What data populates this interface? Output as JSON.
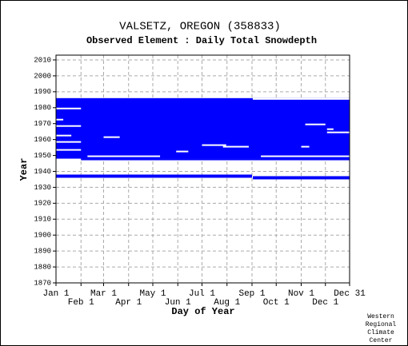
{
  "chart_data": {
    "type": "availability",
    "title": "VALSETZ, OREGON   (358833)",
    "subtitle": "Observed Element : Daily Total Snowdepth",
    "xlabel": "Day of Year",
    "ylabel": "Year",
    "credit": [
      "Western",
      "Regional",
      "Climate",
      "Center"
    ],
    "color": "#0000ff",
    "gap_color": "#ffffff",
    "grid": true,
    "xlim": [
      1,
      365
    ],
    "ylim": [
      1870,
      2013
    ],
    "xticks": [
      {
        "value": 1,
        "label": "Jan 1"
      },
      {
        "value": 32,
        "label": "Feb 1"
      },
      {
        "value": 60,
        "label": "Mar 1"
      },
      {
        "value": 91,
        "label": "Apr 1"
      },
      {
        "value": 121,
        "label": "May 1"
      },
      {
        "value": 152,
        "label": "Jun 1"
      },
      {
        "value": 182,
        "label": "Jul 1"
      },
      {
        "value": 213,
        "label": "Aug 1"
      },
      {
        "value": 244,
        "label": "Sep 1"
      },
      {
        "value": 274,
        "label": "Oct 1"
      },
      {
        "value": 305,
        "label": "Nov 1"
      },
      {
        "value": 335,
        "label": "Dec 1"
      },
      {
        "value": 365,
        "label": "Dec 31"
      }
    ],
    "yticks": [
      1870,
      1880,
      1890,
      1900,
      1910,
      1920,
      1930,
      1940,
      1950,
      1960,
      1970,
      1980,
      1990,
      2000,
      2010
    ],
    "filled": [
      [
        1948,
        1986,
        1,
        365
      ],
      [
        1947,
        1948,
        32,
        365
      ],
      [
        1936,
        1938,
        1,
        244
      ],
      [
        1935,
        1937,
        245,
        365
      ]
    ],
    "missing": [
      [
        1979,
        1980,
        1,
        32
      ],
      [
        1968,
        1969,
        1,
        32
      ],
      [
        1972,
        1973,
        1,
        10
      ],
      [
        1962,
        1963,
        1,
        20
      ],
      [
        1958,
        1959,
        1,
        32
      ],
      [
        1953,
        1954,
        1,
        32
      ],
      [
        1961,
        1962,
        60,
        80
      ],
      [
        1969,
        1970,
        310,
        335
      ],
      [
        1966,
        1967,
        337,
        345
      ],
      [
        1964,
        1965,
        337,
        365
      ],
      [
        1956,
        1957,
        182,
        212
      ],
      [
        1955,
        1956,
        208,
        240
      ],
      [
        1952,
        1953,
        150,
        165
      ],
      [
        1955,
        1956,
        305,
        315
      ],
      [
        1949,
        1950,
        40,
        130
      ],
      [
        1949,
        1950,
        255,
        365
      ],
      [
        1985,
        1986,
        245,
        365
      ]
    ]
  }
}
